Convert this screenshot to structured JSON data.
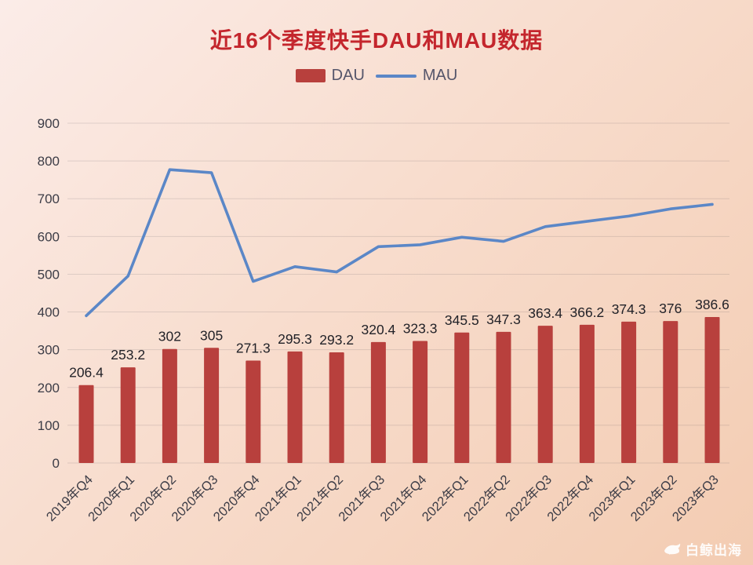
{
  "title": "近16个季度快手DAU和MAU数据",
  "legend": {
    "dau_label": "DAU",
    "mau_label": "MAU"
  },
  "watermark": "白鲸出海",
  "colors": {
    "bar": "#b8403d",
    "line": "#5b87c7",
    "title": "#c4262d",
    "axis_text": "#3c3c46",
    "grid": "rgba(60,60,70,0.14)",
    "data_label": "#222228"
  },
  "chart_data": {
    "type": "bar",
    "title": "近16个季度快手DAU和MAU数据",
    "categories": [
      "2019年Q4",
      "2020年Q1",
      "2020年Q2",
      "2020年Q3",
      "2020年Q4",
      "2021年Q1",
      "2021年Q2",
      "2021年Q3",
      "2021年Q4",
      "2022年Q1",
      "2022年Q2",
      "2022年Q3",
      "2022年Q4",
      "2023年Q1",
      "2023年Q2",
      "2023年Q3"
    ],
    "series": [
      {
        "name": "DAU",
        "type": "bar",
        "values": [
          206.4,
          253.2,
          302,
          305,
          271.3,
          295.3,
          293.2,
          320.4,
          323.3,
          345.5,
          347.3,
          363.4,
          366.2,
          374.3,
          376,
          386.6
        ],
        "data_labels_visible": true
      },
      {
        "name": "MAU",
        "type": "line",
        "values": [
          390,
          495,
          777,
          769,
          481,
          520,
          506,
          573,
          578,
          598,
          587,
          626,
          640,
          654,
          673,
          685
        ],
        "data_labels_visible": false,
        "note": "values estimated from line position against gridlines"
      }
    ],
    "xlabel": "",
    "ylabel": "",
    "ylim": [
      0,
      900
    ],
    "ytick_step": 100,
    "grid": true,
    "legend_position": "top"
  }
}
